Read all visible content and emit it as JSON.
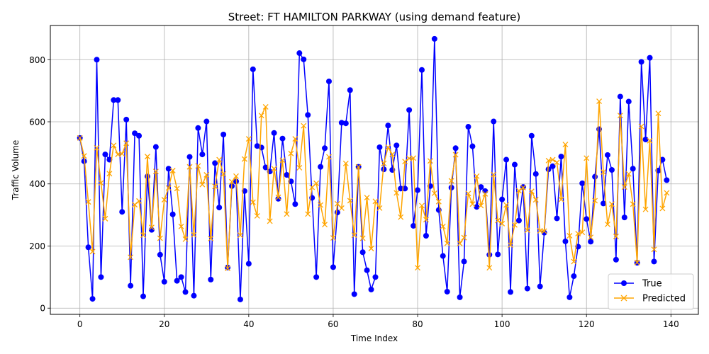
{
  "chart_data": {
    "type": "line",
    "title": "Street: FT HAMILTON PARKWAY (using demand feature)",
    "xlabel": "Time Index",
    "ylabel": "Traffic Volume",
    "xlim": [
      -7,
      146.5
    ],
    "ylim": [
      -20,
      910
    ],
    "xticks": [
      0,
      20,
      40,
      60,
      80,
      100,
      120,
      140
    ],
    "yticks": [
      0,
      200,
      400,
      600,
      800
    ],
    "grid": true,
    "legend_position": "lower-right",
    "series": [
      {
        "name": "True",
        "color": "#0000ff",
        "marker": "circle",
        "values": [
          548,
          473,
          196,
          30,
          800,
          100,
          495,
          478,
          670,
          670,
          310,
          607,
          72,
          563,
          555,
          38,
          424,
          252,
          519,
          172,
          85,
          449,
          302,
          88,
          100,
          52,
          487,
          40,
          580,
          495,
          601,
          92,
          467,
          324,
          559,
          131,
          393,
          408,
          28,
          377,
          143,
          769,
          522,
          517,
          453,
          440,
          564,
          352,
          546,
          429,
          408,
          335,
          821,
          801,
          622,
          355,
          100,
          455,
          515,
          730,
          132,
          308,
          597,
          595,
          702,
          45,
          455,
          180,
          122,
          60,
          100,
          518,
          447,
          588,
          445,
          524,
          385,
          385,
          638,
          265,
          380,
          767,
          233,
          393,
          867,
          316,
          168,
          53,
          388,
          515,
          35,
          150,
          584,
          521,
          326,
          390,
          377,
          172,
          601,
          173,
          350,
          478,
          52,
          462,
          282,
          390,
          63,
          555,
          432,
          70,
          243,
          447,
          457,
          289,
          488,
          215,
          35,
          103,
          198,
          402,
          287,
          214,
          423,
          576,
          337,
          493,
          445,
          156,
          681,
          292,
          665,
          449,
          146,
          793,
          543,
          806,
          150,
          443,
          478,
          412
        ]
      },
      {
        "name": "Predicted",
        "color": "#ffa500",
        "marker": "x",
        "values": [
          548,
          490,
          342,
          182,
          516,
          403,
          288,
          433,
          524,
          495,
          497,
          531,
          164,
          333,
          345,
          235,
          488,
          260,
          440,
          225,
          349,
          387,
          443,
          385,
          263,
          222,
          455,
          236,
          458,
          398,
          429,
          224,
          392,
          478,
          432,
          128,
          407,
          425,
          235,
          480,
          545,
          341,
          297,
          620,
          648,
          280,
          449,
          357,
          476,
          303,
          498,
          545,
          452,
          587,
          303,
          389,
          402,
          332,
          269,
          487,
          226,
          336,
          322,
          466,
          346,
          235,
          455,
          225,
          356,
          192,
          344,
          322,
          466,
          518,
          495,
          371,
          293,
          472,
          482,
          483,
          130,
          330,
          285,
          474,
          370,
          343,
          263,
          209,
          410,
          494,
          208,
          227,
          369,
          335,
          425,
          330,
          368,
          130,
          430,
          282,
          272,
          332,
          203,
          268,
          378,
          388,
          251,
          376,
          349,
          249,
          248,
          475,
          478,
          469,
          350,
          527,
          233,
          150,
          240,
          244,
          483,
          228,
          346,
          666,
          438,
          270,
          335,
          231,
          620,
          390,
          432,
          335,
          147,
          585,
          318,
          539,
          189,
          627,
          321,
          371
        ]
      }
    ]
  }
}
